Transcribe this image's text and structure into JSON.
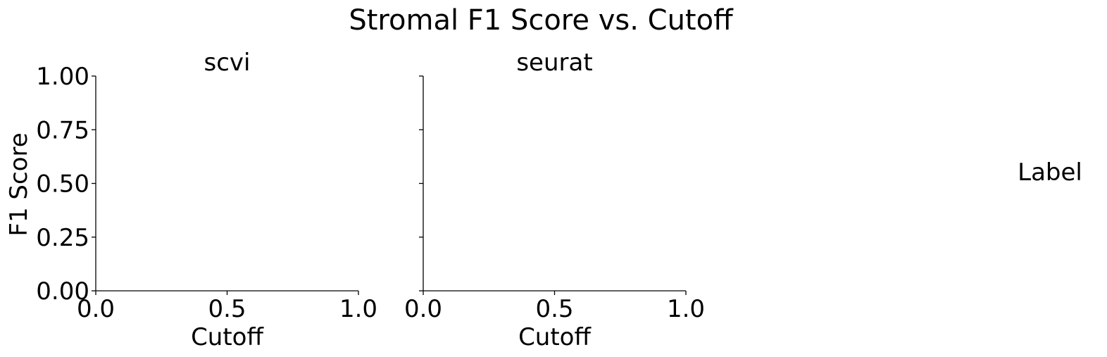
{
  "chart_data": {
    "type": "line",
    "title": "Stromal F1 Score vs. Cutoff",
    "ylabel": "F1 Score",
    "legend": {
      "title": "Label",
      "placement": "right",
      "entries": []
    },
    "grid": false,
    "shared_y": true,
    "panels": [
      {
        "title": "scvi",
        "xlabel": "Cutoff",
        "xlim": [
          0,
          1
        ],
        "ylim": [
          0,
          1
        ],
        "x_ticks": [
          0.0,
          0.5,
          1.0
        ],
        "x_tick_labels": [
          "0.0",
          "0.5",
          "1.0"
        ],
        "y_ticks": [
          0.0,
          0.25,
          0.5,
          0.75,
          1.0
        ],
        "y_tick_labels": [
          "0.00",
          "0.25",
          "0.50",
          "0.75",
          "1.00"
        ],
        "series": []
      },
      {
        "title": "seurat",
        "xlabel": "Cutoff",
        "xlim": [
          0,
          1
        ],
        "ylim": [
          0,
          1
        ],
        "x_ticks": [
          0.0,
          0.5,
          1.0
        ],
        "x_tick_labels": [
          "0.0",
          "0.5",
          "1.0"
        ],
        "y_ticks": [
          0.0,
          0.25,
          0.5,
          0.75,
          1.0
        ],
        "y_tick_labels": [],
        "series": []
      }
    ]
  }
}
